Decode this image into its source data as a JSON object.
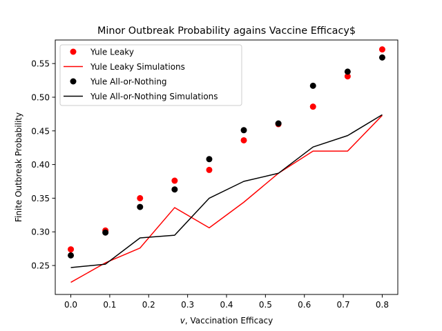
{
  "chart_data": {
    "type": "line",
    "title": "Minor Outbreak Probability agains Vaccine Efficacy$",
    "xlabel_symbol": "v",
    "xlabel_rest": ", Vaccination Efficacy",
    "ylabel": "Finite Outbreak Probability",
    "xlim": [
      -0.04,
      0.84
    ],
    "ylim": [
      0.207,
      0.585
    ],
    "x_ticks": [
      0.0,
      0.1,
      0.2,
      0.3,
      0.4,
      0.5,
      0.6,
      0.7,
      0.8
    ],
    "x_tick_labels": [
      "0.0",
      "0.1",
      "0.2",
      "0.3",
      "0.4",
      "0.5",
      "0.6",
      "0.7",
      "0.8"
    ],
    "y_ticks": [
      0.25,
      0.3,
      0.35,
      0.4,
      0.45,
      0.5,
      0.55
    ],
    "y_tick_labels": [
      "0.25",
      "0.30",
      "0.35",
      "0.40",
      "0.45",
      "0.50",
      "0.55"
    ],
    "grid": false,
    "legend_position": "top-left",
    "x": [
      0.0,
      0.0889,
      0.1778,
      0.2667,
      0.3556,
      0.4444,
      0.5333,
      0.6222,
      0.7111,
      0.8
    ],
    "series": [
      {
        "name": "Yule Leaky",
        "style": "marker",
        "color": "#ff0000",
        "values": [
          0.274,
          0.302,
          0.35,
          0.376,
          0.392,
          0.436,
          0.46,
          0.486,
          0.531,
          0.571
        ]
      },
      {
        "name": "Yule Leaky Simulations",
        "style": "line",
        "color": "#ff0000",
        "values": [
          0.225,
          0.254,
          0.276,
          0.336,
          0.306,
          0.344,
          0.387,
          0.42,
          0.42,
          0.473
        ]
      },
      {
        "name": "Yule All-or-Nothing",
        "style": "marker",
        "color": "#000000",
        "values": [
          0.265,
          0.299,
          0.337,
          0.363,
          0.408,
          0.451,
          0.461,
          0.517,
          0.538,
          0.559
        ]
      },
      {
        "name": "Yule All-or-Nothing Simulations",
        "style": "line",
        "color": "#000000",
        "values": [
          0.247,
          0.252,
          0.291,
          0.295,
          0.35,
          0.375,
          0.387,
          0.426,
          0.443,
          0.474
        ]
      }
    ]
  }
}
